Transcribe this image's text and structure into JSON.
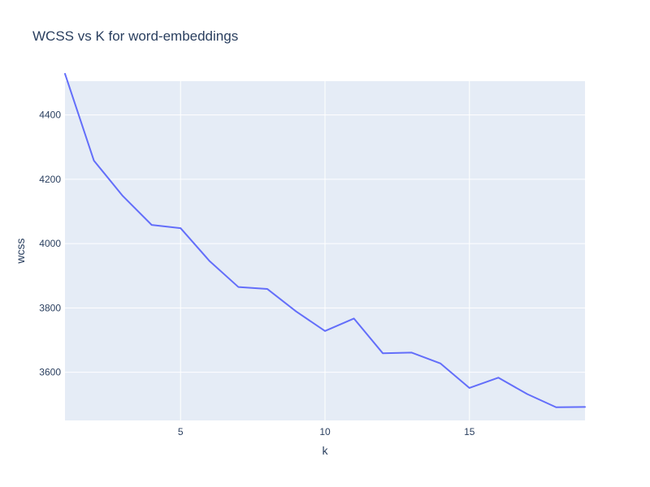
{
  "chart_data": {
    "type": "line",
    "title": "WCSS vs K for word-embeddings",
    "xlabel": "k",
    "ylabel": "wcss",
    "xlim": [
      1,
      19
    ],
    "ylim": [
      3450,
      4505
    ],
    "x_ticks": [
      5,
      10,
      15
    ],
    "y_ticks": [
      3600,
      3800,
      4000,
      4200,
      4400
    ],
    "grid": true,
    "legend": "none",
    "colors": {
      "plot_bg": "#e5ecf6",
      "grid": "#ffffff",
      "line": "#636efa",
      "text": "#2a3f5f"
    },
    "series": [
      {
        "x": [
          1,
          2,
          3,
          4,
          5,
          6,
          7,
          8,
          9,
          10,
          11,
          12,
          13,
          14,
          15,
          16,
          17,
          18,
          19
        ],
        "values": [
          4528,
          4258,
          4148,
          4058,
          4048,
          3946,
          3865,
          3859,
          3789,
          3728,
          3767,
          3659,
          3661,
          3627,
          3551,
          3583,
          3532,
          3491,
          3492
        ]
      }
    ]
  }
}
